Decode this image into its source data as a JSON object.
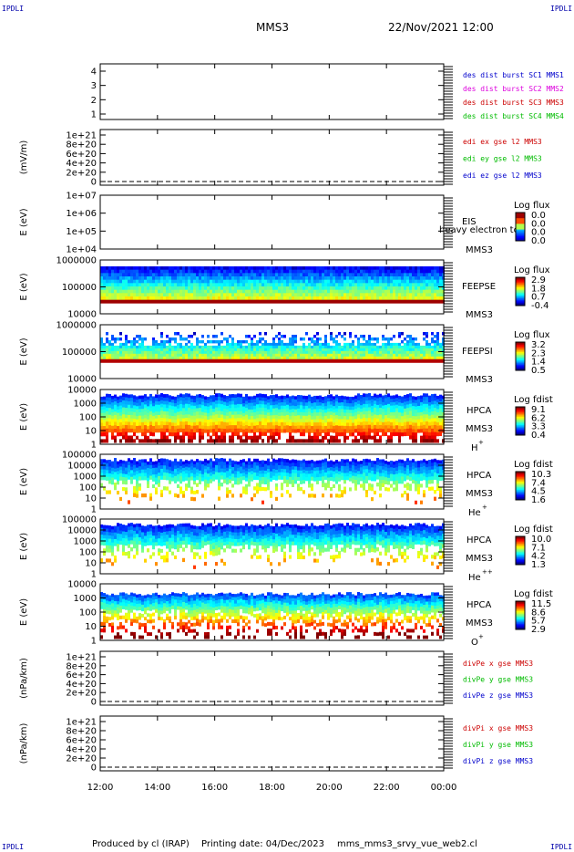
{
  "header": {
    "corner_label": "IPDLI",
    "spacecraft": "MMS3",
    "date_time": "22/Nov/2021 12:00"
  },
  "footer": {
    "produced_by": "Produced by cl (IRAP)",
    "printing_date": "Printing date: 04/Dec/2023",
    "filename": "mms_mms3_srvy_vue_web2.cl"
  },
  "chart_data": {
    "type": "heatmap",
    "x_ticks": [
      "12:00",
      "14:00",
      "16:00",
      "18:00",
      "20:00",
      "22:00",
      "00:00"
    ],
    "panels": [
      {
        "id": "dist",
        "kind": "labels",
        "yticks": [
          "1",
          "2",
          "3",
          "4"
        ],
        "legend": [
          {
            "text": "des dist burst SC1 MMS1",
            "color": "#0000cc"
          },
          {
            "text": "des dist burst SC2 MMS2",
            "color": "#dd00dd"
          },
          {
            "text": "des dist burst SC3 MMS3",
            "color": "#cc0000"
          },
          {
            "text": "des dist burst SC4 MMS4",
            "color": "#00bb00"
          }
        ]
      },
      {
        "id": "edi",
        "kind": "labels",
        "ylabel": "(mV/m)",
        "yticks": [
          "0",
          "2e+20",
          "4e+20",
          "6e+20",
          "8e+20",
          "1e+21"
        ],
        "dashed_zero": true,
        "legend": [
          {
            "text": "edi ex gse l2 MMS3",
            "color": "#cc0000"
          },
          {
            "text": "edi ey gse l2 MMS3",
            "color": "#00bb00"
          },
          {
            "text": "edi ez gse l2 MMS3",
            "color": "#0000cc"
          }
        ]
      },
      {
        "id": "eis",
        "kind": "empty",
        "ylabel": "E (eV)",
        "yticks": [
          "1e+04",
          "1e+05",
          "1e+06",
          "1e+07"
        ],
        "inst": "EIS",
        "sc": "MMS3",
        "overlay": "heavy electron tof",
        "cbar_title": "Log flux",
        "cbar_ticks": [
          "0.0",
          "0.0",
          "0.0",
          "0.0"
        ]
      },
      {
        "id": "feepse",
        "kind": "feeps",
        "ylabel": "E (eV)",
        "yticks": [
          "10000",
          "100000",
          "1000000"
        ],
        "inst": "FEEPSE",
        "sc": "MMS3",
        "cbar_title": "Log flux",
        "cbar_ticks": [
          "2.9",
          "1.8",
          "0.7",
          "-0.4"
        ]
      },
      {
        "id": "feepsi",
        "kind": "feepsi",
        "ylabel": "E (eV)",
        "yticks": [
          "10000",
          "100000",
          "1000000"
        ],
        "inst": "FEEPSI",
        "sc": "MMS3",
        "cbar_title": "Log flux",
        "cbar_ticks": [
          "3.2",
          "2.3",
          "1.4",
          "0.5"
        ]
      },
      {
        "id": "hpca_h",
        "kind": "hpca",
        "ylabel": "E (eV)",
        "yticks": [
          "1",
          "10",
          "100",
          "1000",
          "10000"
        ],
        "inst": "HPCA",
        "sc": "MMS3",
        "species": "H",
        "sup": "+",
        "cbar_title": "Log fdist",
        "cbar_ticks": [
          "9.1",
          "6.2",
          "3.3",
          "0.4"
        ]
      },
      {
        "id": "hpca_he",
        "kind": "hpca",
        "ylabel": "E (eV)",
        "yticks": [
          "1",
          "10",
          "100",
          "1000",
          "10000",
          "100000"
        ],
        "inst": "HPCA",
        "sc": "MMS3",
        "species": "He",
        "sup": "+",
        "cbar_title": "Log fdist",
        "cbar_ticks": [
          "10.3",
          "7.4",
          "4.5",
          "1.6"
        ]
      },
      {
        "id": "hpca_hepp",
        "kind": "hpca",
        "ylabel": "E (eV)",
        "yticks": [
          "1",
          "10",
          "100",
          "1000",
          "10000",
          "100000"
        ],
        "inst": "HPCA",
        "sc": "MMS3",
        "species": "He",
        "sup": "++",
        "cbar_title": "Log fdist",
        "cbar_ticks": [
          "10.0",
          "7.1",
          "4.2",
          "1.3"
        ]
      },
      {
        "id": "hpca_o",
        "kind": "hpca",
        "ylabel": "E (eV)",
        "yticks": [
          "1",
          "10",
          "100",
          "1000",
          "10000"
        ],
        "inst": "HPCA",
        "sc": "MMS3",
        "species": "O",
        "sup": "+",
        "cbar_title": "Log fdist",
        "cbar_ticks": [
          "11.5",
          "8.6",
          "5.7",
          "2.9"
        ]
      },
      {
        "id": "divpe",
        "kind": "labels",
        "ylabel": "(nPa/km)",
        "yticks": [
          "0",
          "2e+20",
          "4e+20",
          "6e+20",
          "8e+20",
          "1e+21"
        ],
        "dashed_zero": true,
        "legend": [
          {
            "text": "divPe x gse MMS3",
            "color": "#cc0000"
          },
          {
            "text": "divPe y gse MMS3",
            "color": "#00bb00"
          },
          {
            "text": "divPe z gse MMS3",
            "color": "#0000cc"
          }
        ]
      },
      {
        "id": "divpi",
        "kind": "labels",
        "ylabel": "(nPa/km)",
        "yticks": [
          "0",
          "2e+20",
          "4e+20",
          "6e+20",
          "8e+20",
          "1e+21"
        ],
        "dashed_zero": true,
        "legend": [
          {
            "text": "divPi x gse MMS3",
            "color": "#cc0000"
          },
          {
            "text": "divPi y gse MMS3",
            "color": "#00bb00"
          },
          {
            "text": "divPi z gse MMS3",
            "color": "#0000cc"
          }
        ]
      }
    ]
  }
}
